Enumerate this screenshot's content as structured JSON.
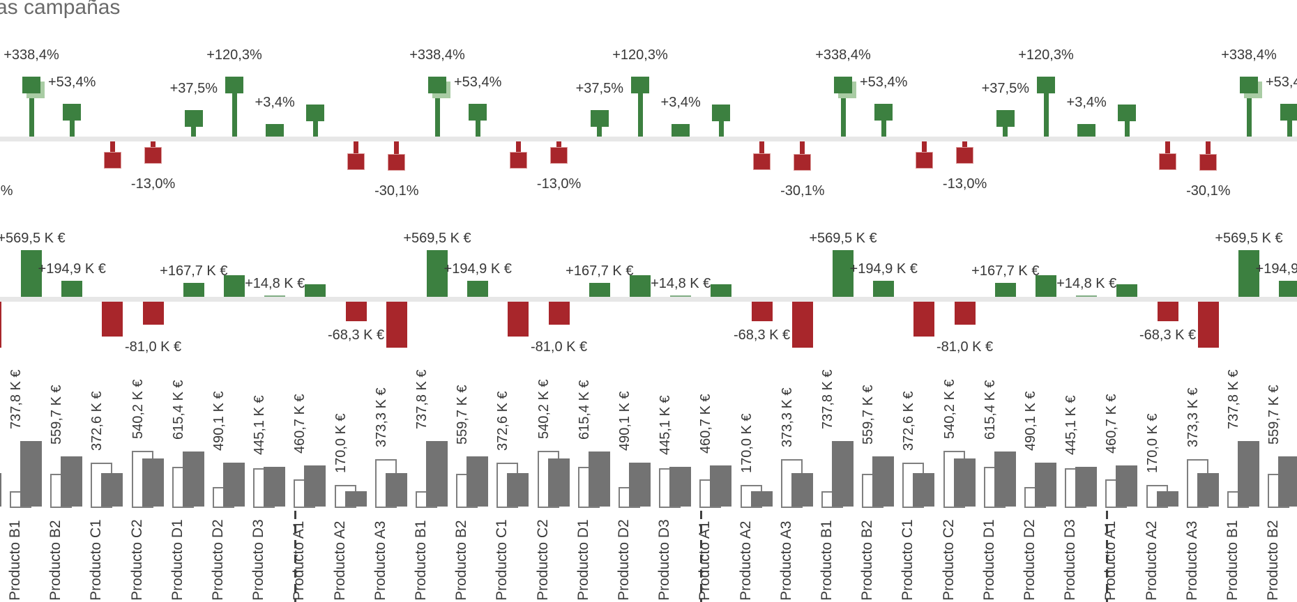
{
  "header": {
    "title": "as campañas"
  },
  "colors": {
    "positive": "#3C8040",
    "positive_light": "#A9CCA4",
    "negative": "#A8262B",
    "negative_border": "#DC9C9C",
    "actual_gray": "#737373",
    "py_outline": "#7F7F7F",
    "baseline_band": "#E7E7E7",
    "label_text": "#383838",
    "title_text": "#6A6A6A",
    "separator": "#404040"
  },
  "chart_data": {
    "type": "bar",
    "subtype": "IBCS/Zebra-style triple-panel variance chart (pct pins, abs variance bars, actual vs outlined reference bars), pattern repeated 4 times and cropped at both edges",
    "title": "as campañas",
    "categories": [
      "Producto B1",
      "Producto B2",
      "Producto C1",
      "Producto C2",
      "Producto D1",
      "Producto D2",
      "Producto D3",
      "Producto A1",
      "Producto A2",
      "Producto A3"
    ],
    "repetitions_visible": 4,
    "panels": [
      {
        "name": "variance_pct",
        "unit": "%",
        "note": "green up / red down pins; Producto B1 pin truncated at plot top (outlier marker)"
      },
      {
        "name": "variance_abs",
        "unit": "K €",
        "note": "green up / red down bars"
      },
      {
        "name": "actual_vs_reference",
        "unit": "K €",
        "note": "white outlined bar = reference, gray filled bar = actual; rotated value labels above, rotated category labels below, dashed separator between repetitions"
      }
    ],
    "series": [
      {
        "name": "variance_pct",
        "values": [
          338.4,
          53.4,
          -24.8,
          -13.0,
          37.5,
          120.3,
          3.4,
          51.7,
          -28.7,
          -30.1
        ]
      },
      {
        "name": "variance_abs_k_eur",
        "values": [
          569.5,
          194.9,
          -123.0,
          -81.0,
          167.7,
          267.6,
          14.8,
          153.6,
          -68.3,
          -160.7
        ]
      },
      {
        "name": "actual_k_eur",
        "values": [
          737.8,
          559.7,
          372.6,
          540.2,
          615.4,
          490.1,
          445.1,
          460.7,
          170.0,
          373.3
        ]
      },
      {
        "name": "reference_k_eur_estimated",
        "values": [
          168.3,
          364.8,
          495.6,
          621.2,
          447.7,
          222.5,
          430.3,
          307.1,
          238.3,
          534.0
        ]
      }
    ],
    "shown_labels": {
      "variance_pct": [
        "+338,4%",
        "+53,4%",
        null,
        "-13,0%",
        "+37,5%",
        "+120,3%",
        "+3,4%",
        null,
        null,
        "-30,1%"
      ],
      "variance_abs": [
        "+569,5 K €",
        "+194,9 K €",
        null,
        "-81,0 K €",
        "+167,7 K €",
        null,
        "+14,8 K €",
        null,
        "-68,3 K €",
        null
      ],
      "actual": [
        "737,8 K €",
        "559,7 K €",
        "372,6 K €",
        "540,2 K €",
        "615,4 K €",
        "490,1 K €",
        "445,1 K €",
        "460,7 K €",
        "170,0 K €",
        "373,3 K €"
      ]
    },
    "truncated_pins": [
      true,
      false,
      false,
      false,
      false,
      false,
      false,
      false,
      false,
      false
    ],
    "grid": false,
    "legend": false
  }
}
